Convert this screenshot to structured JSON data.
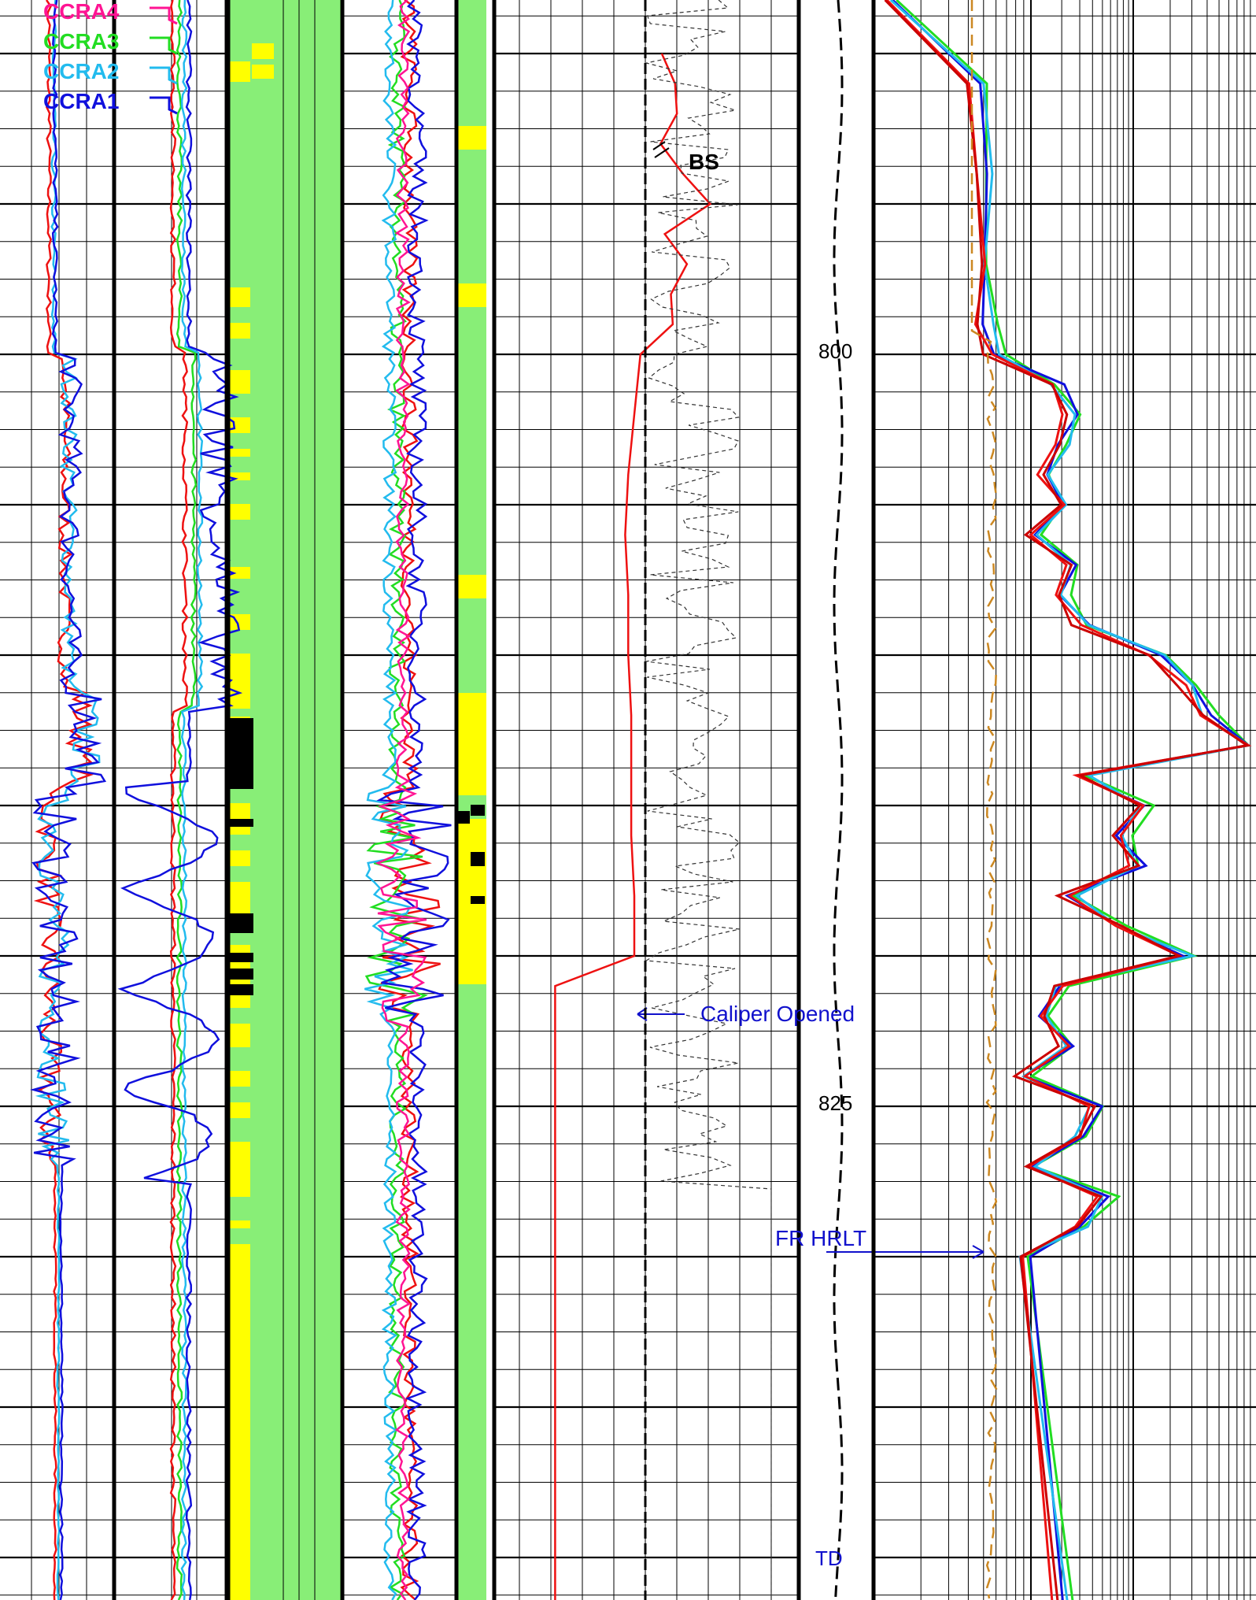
{
  "chart_data": {
    "type": "line",
    "depth_labels": [
      {
        "depth": 800,
        "text": "800"
      },
      {
        "depth": 825,
        "text": "825"
      }
    ],
    "legend": [
      {
        "name": "CCRA4",
        "color": "#ff1493"
      },
      {
        "name": "CCRA3",
        "color": "#22dd22"
      },
      {
        "name": "CCRA2",
        "color": "#22bbee"
      },
      {
        "name": "CCRA1",
        "color": "#1010dd"
      }
    ],
    "annotations": {
      "bs": "BS",
      "caliper": "Caliper Opened",
      "fr": "FR HRLT",
      "td": "TD"
    },
    "colors": {
      "red": "#ee1111",
      "darkred": "#cc0000",
      "green": "#22dd22",
      "cyan": "#22bbee",
      "blue": "#1010dd",
      "magenta": "#ff1493",
      "lime": "#88ee77",
      "yellow": "#ffff00",
      "annot_blue": "#1111cc",
      "orange_dash": "#cc8822"
    },
    "caliper_curve": [
      [
        790,
        0.55
      ],
      [
        792,
        0.6
      ],
      [
        794,
        0.62
      ],
      [
        796,
        0.56
      ],
      [
        798,
        0.58
      ],
      [
        800,
        0.48
      ],
      [
        802,
        0.46
      ],
      [
        804,
        0.44
      ],
      [
        806,
        0.43
      ],
      [
        808,
        0.44
      ],
      [
        810,
        0.44
      ],
      [
        812,
        0.45
      ],
      [
        814,
        0.45
      ],
      [
        816,
        0.45
      ],
      [
        818,
        0.46
      ],
      [
        820,
        0.46
      ],
      [
        821,
        0.2
      ],
      [
        830,
        0.2
      ],
      [
        842,
        0.2
      ]
    ],
    "induction_depths": [
      791,
      794,
      797,
      799,
      800,
      801,
      802,
      803,
      804,
      805,
      806,
      807,
      808,
      809,
      810,
      811,
      812,
      813,
      814,
      815,
      816,
      817,
      818,
      819,
      820,
      821,
      822,
      823,
      824,
      825,
      826,
      827,
      828,
      829,
      830,
      842
    ],
    "induction_values": [
      0.28,
      0.3,
      0.3,
      0.3,
      0.32,
      0.48,
      0.52,
      0.5,
      0.46,
      0.5,
      0.42,
      0.52,
      0.5,
      0.55,
      0.75,
      0.82,
      0.88,
      1.0,
      0.55,
      0.72,
      0.65,
      0.7,
      0.52,
      0.65,
      0.82,
      0.5,
      0.45,
      0.52,
      0.4,
      0.58,
      0.55,
      0.42,
      0.62,
      0.55,
      0.4,
      0.5
    ]
  }
}
